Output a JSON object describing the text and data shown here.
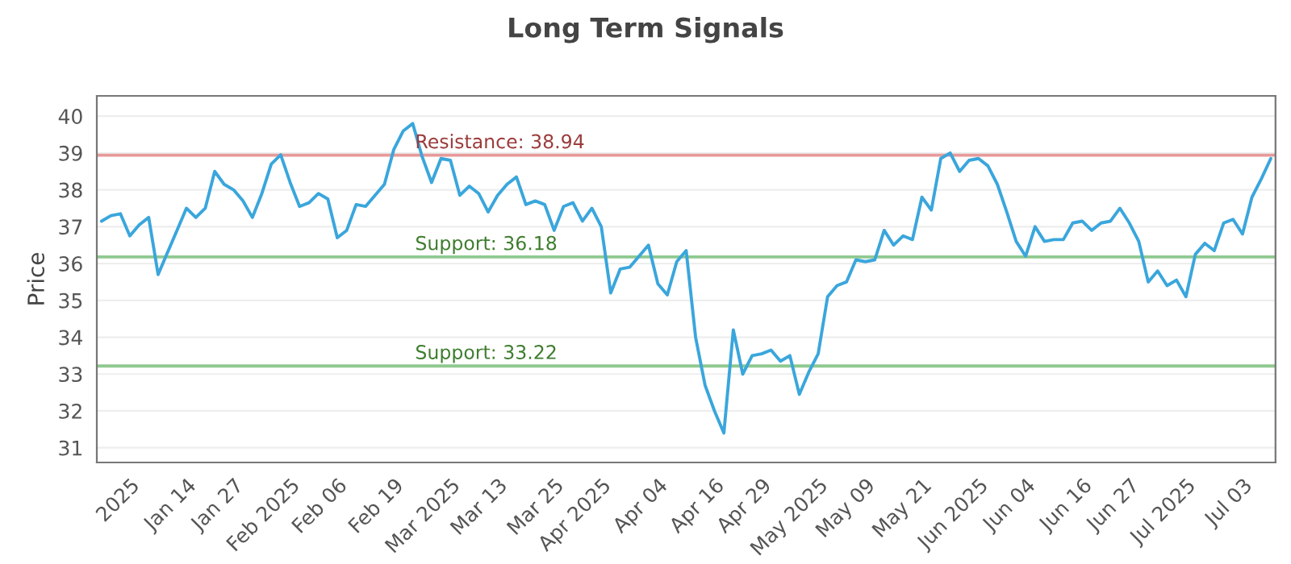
{
  "chart_data": {
    "type": "line",
    "title": "Long Term Signals",
    "ylabel": "Price",
    "categories": [
      null,
      null,
      null,
      "2025",
      null,
      null,
      null,
      null,
      null,
      "Jan 14",
      null,
      null,
      null,
      null,
      "Jan 27",
      null,
      null,
      null,
      null,
      null,
      "Feb 2025",
      null,
      null,
      null,
      null,
      "Feb 06",
      null,
      null,
      null,
      null,
      null,
      "Feb 19",
      null,
      null,
      null,
      null,
      null,
      "Mar 2025",
      null,
      null,
      null,
      null,
      "Mar 13",
      null,
      null,
      null,
      null,
      null,
      "Mar 25",
      null,
      null,
      null,
      null,
      "Apr 2025",
      null,
      null,
      null,
      null,
      null,
      "Apr 04",
      null,
      null,
      null,
      null,
      null,
      "Apr 16",
      null,
      null,
      null,
      null,
      "Apr 29",
      null,
      null,
      null,
      null,
      null,
      "May 2025",
      null,
      null,
      null,
      null,
      "May 09",
      null,
      null,
      null,
      null,
      null,
      "May 21",
      null,
      null,
      null,
      null,
      null,
      "Jun 2025",
      null,
      null,
      null,
      null,
      "Jun 04",
      null,
      null,
      null,
      null,
      null,
      "Jun 16",
      null,
      null,
      null,
      null,
      "Jun 27",
      null,
      null,
      null,
      null,
      null,
      "Jul 2025",
      null,
      null,
      null,
      null,
      null,
      "Jul 03",
      null,
      null,
      null
    ],
    "series": [
      {
        "color": "#3aa6dc",
        "values": [
          37.15,
          37.3,
          37.35,
          36.75,
          37.05,
          37.25,
          35.7,
          36.3,
          36.9,
          37.5,
          37.25,
          37.5,
          38.5,
          38.15,
          38.0,
          37.7,
          37.25,
          37.9,
          38.7,
          38.95,
          38.2,
          37.55,
          37.65,
          37.9,
          37.75,
          36.7,
          36.9,
          37.6,
          37.55,
          37.85,
          38.15,
          39.1,
          39.6,
          39.8,
          38.9,
          38.2,
          38.85,
          38.8,
          37.85,
          38.1,
          37.9,
          37.4,
          37.85,
          38.15,
          38.35,
          37.6,
          37.7,
          37.6,
          36.9,
          37.55,
          37.65,
          37.15,
          37.5,
          37.0,
          35.2,
          35.85,
          35.9,
          36.2,
          36.5,
          35.45,
          35.15,
          36.05,
          36.35,
          34.0,
          32.7,
          32.0,
          31.4,
          34.2,
          33.0,
          33.5,
          33.55,
          33.65,
          33.35,
          33.5,
          32.45,
          33.05,
          33.55,
          35.1,
          35.4,
          35.5,
          36.1,
          36.05,
          36.1,
          36.9,
          36.5,
          36.75,
          36.65,
          37.8,
          37.45,
          38.85,
          39.0,
          38.5,
          38.8,
          38.85,
          38.65,
          38.15,
          37.4,
          36.6,
          36.2,
          37.0,
          36.6,
          36.65,
          36.65,
          37.1,
          37.15,
          36.9,
          37.1,
          37.15,
          37.5,
          37.1,
          36.6,
          35.5,
          35.8,
          35.4,
          35.55,
          35.1,
          36.25,
          36.55,
          36.35,
          37.1,
          37.2,
          36.8,
          37.8,
          38.3,
          38.85
        ]
      }
    ],
    "ylim": [
      30.6,
      40.55
    ],
    "yticks": [
      31,
      32,
      33,
      34,
      35,
      36,
      37,
      38,
      39,
      40
    ],
    "ref_lines": [
      {
        "axis": "y",
        "value": 38.94,
        "label": "Resistance: 38.94",
        "color": "#e89a9a"
      },
      {
        "axis": "y",
        "value": 36.18,
        "label": "Support: 36.18",
        "color": "#8fc98f"
      },
      {
        "axis": "y",
        "value": 33.22,
        "label": "Support: 33.22",
        "color": "#8fc98f"
      }
    ],
    "grid": "y",
    "marker": "none",
    "line_style": "solid"
  }
}
